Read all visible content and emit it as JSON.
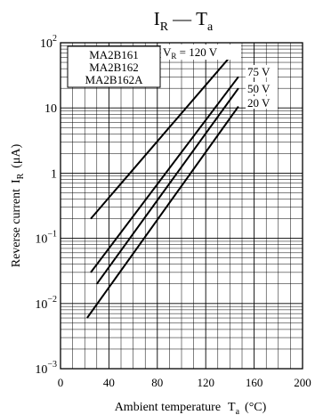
{
  "chart_data": {
    "type": "line",
    "title": {
      "main": "I",
      "main_sub": "R",
      "dash": "—",
      "var": "T",
      "var_sub": "a"
    },
    "xlabel": {
      "text": "Ambient temperature",
      "var": "T",
      "var_sub": "a",
      "unit": "(°C)"
    },
    "ylabel": {
      "text": "Reverse current",
      "var": "I",
      "var_sub": "R",
      "unit": "(μA)"
    },
    "x_ticks": [
      "0",
      "40",
      "80",
      "120",
      "160",
      "200"
    ],
    "x_tick_values": [
      0,
      40,
      80,
      120,
      160,
      200
    ],
    "xlim": [
      0,
      200
    ],
    "y_scale": "log",
    "ylim": [
      0.001,
      100
    ],
    "y_ticks": [
      {
        "base": "10",
        "exp": "2",
        "value": 100
      },
      {
        "base": "10",
        "exp": "",
        "value": 10
      },
      {
        "base": "1",
        "exp": "",
        "value": 1
      },
      {
        "base": "10",
        "exp": "−1",
        "value": 0.1
      },
      {
        "base": "10",
        "exp": "−2",
        "value": 0.01
      },
      {
        "base": "10",
        "exp": "−3",
        "value": 0.001
      }
    ],
    "grid": true,
    "legend_box": [
      "MA2B161",
      "MA2B162",
      "MA2B162A"
    ],
    "series": [
      {
        "name": "120 V",
        "label_prefix": "V",
        "label_sub": "R",
        "label_text": " = 120 V",
        "x": [
          25,
          148
        ],
        "y": [
          0.2,
          90
        ]
      },
      {
        "name": "75 V",
        "label_text": "75 V",
        "x": [
          25,
          147
        ],
        "y": [
          0.03,
          30
        ]
      },
      {
        "name": "50 V",
        "label_text": "50 V",
        "x": [
          30,
          147
        ],
        "y": [
          0.02,
          20
        ]
      },
      {
        "name": "20 V",
        "label_text": "20 V",
        "x": [
          22,
          147
        ],
        "y": [
          0.006,
          10.5
        ]
      }
    ]
  }
}
